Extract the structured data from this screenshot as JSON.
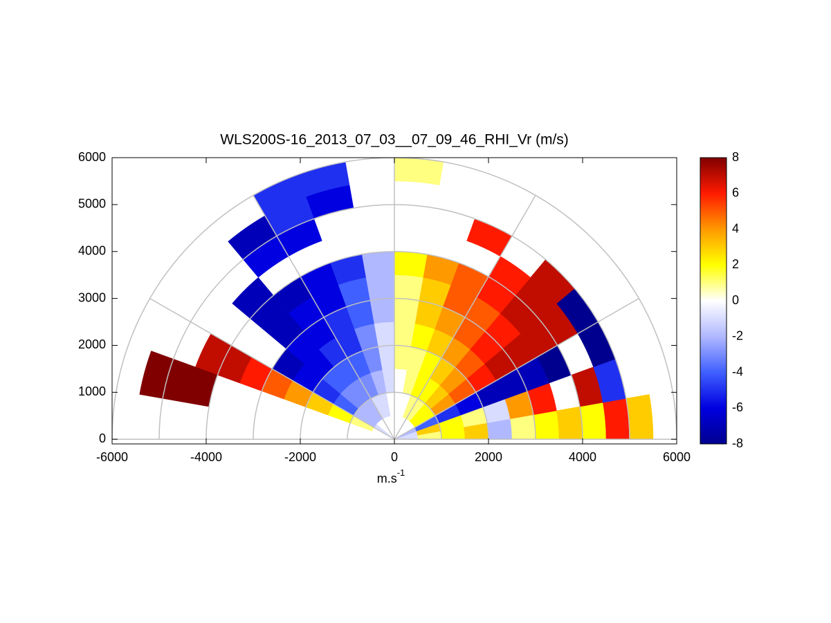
{
  "chart_data": {
    "type": "rhi",
    "title": "WLS200S-16_2013_07_03__07_09_46_RHI_Vr (m/s)",
    "xlabel": {
      "base": "m.s",
      "sup": "-1"
    },
    "xlim": [
      -6000,
      6000
    ],
    "xticks": [
      -6000,
      -4000,
      -2000,
      0,
      2000,
      4000,
      6000
    ],
    "ylim": [
      -100,
      6000
    ],
    "yticks": [
      0,
      1000,
      2000,
      3000,
      4000,
      5000,
      6000
    ],
    "range_rings": [
      1000,
      2000,
      3000,
      4000,
      5000,
      6000
    ],
    "angle_lines": [
      0,
      30,
      60,
      90,
      120,
      150,
      180
    ],
    "elevations": [
      5,
      15,
      25,
      35,
      45,
      55,
      65,
      75,
      85,
      95,
      105,
      115,
      125,
      135,
      145,
      155,
      165
    ],
    "ranges": [
      250,
      750,
      1250,
      1750,
      2250,
      2750,
      3250,
      3750,
      4250,
      4750,
      5250,
      5750
    ],
    "values": [
      [
        -1,
        1,
        2,
        3,
        -2,
        1,
        2,
        3,
        2,
        6,
        3,
        null
      ],
      [
        -1,
        3,
        2,
        1,
        -1,
        4,
        6,
        null,
        7,
        -5,
        null,
        null
      ],
      [
        -2,
        -4,
        -5,
        -6,
        -7,
        -7,
        -7,
        -8,
        null,
        -8,
        null,
        null
      ],
      [
        0,
        2,
        4,
        5,
        6,
        7,
        7,
        7,
        7,
        -8,
        null,
        null
      ],
      [
        0,
        2,
        3,
        4,
        5,
        6,
        6,
        7,
        7,
        7,
        null,
        null
      ],
      [
        0,
        1,
        2,
        3,
        4,
        5,
        5,
        6,
        6,
        null,
        null,
        null
      ],
      [
        0,
        1,
        2,
        2,
        3,
        4,
        5,
        5,
        null,
        6,
        null,
        null
      ],
      [
        0,
        0,
        1,
        1,
        2,
        3,
        3,
        4,
        null,
        null,
        null,
        null
      ],
      [
        0,
        0,
        0,
        1,
        1,
        1,
        1,
        2,
        null,
        null,
        null,
        1
      ],
      [
        0,
        0,
        -1,
        -1,
        -1,
        -2,
        -2,
        -2,
        null,
        null,
        null,
        null
      ],
      [
        0,
        -1,
        -2,
        -3,
        -3,
        -4,
        -4,
        -5,
        null,
        null,
        -6,
        -5
      ],
      [
        0,
        -1,
        -3,
        -4,
        -5,
        -5,
        -6,
        -6,
        null,
        -6,
        -5,
        -5
      ],
      [
        0,
        -2,
        -3,
        -4,
        -5,
        -6,
        -6,
        -7,
        null,
        -6,
        -7,
        null
      ],
      [
        0,
        -2,
        -3,
        -4,
        -6,
        -6,
        -7,
        -7,
        -7,
        null,
        null,
        null
      ],
      [
        -1,
        -2,
        -4,
        -5,
        -6,
        -7,
        null,
        null,
        null,
        null,
        null,
        null
      ],
      [
        null,
        1,
        2,
        3,
        4,
        5,
        6,
        7,
        7,
        null,
        null,
        null
      ],
      [
        null,
        null,
        null,
        null,
        null,
        null,
        null,
        null,
        8,
        8,
        8,
        null
      ]
    ],
    "clim": [
      -8,
      8
    ],
    "cticks": [
      -8,
      -6,
      -4,
      -2,
      0,
      2,
      4,
      6,
      8
    ],
    "colormap": [
      "#00008f",
      "#0000e0",
      "#4060ff",
      "#b0b8ff",
      "#ffffff",
      "#ffff00",
      "#ff9900",
      "#ff1a00",
      "#800000"
    ]
  }
}
